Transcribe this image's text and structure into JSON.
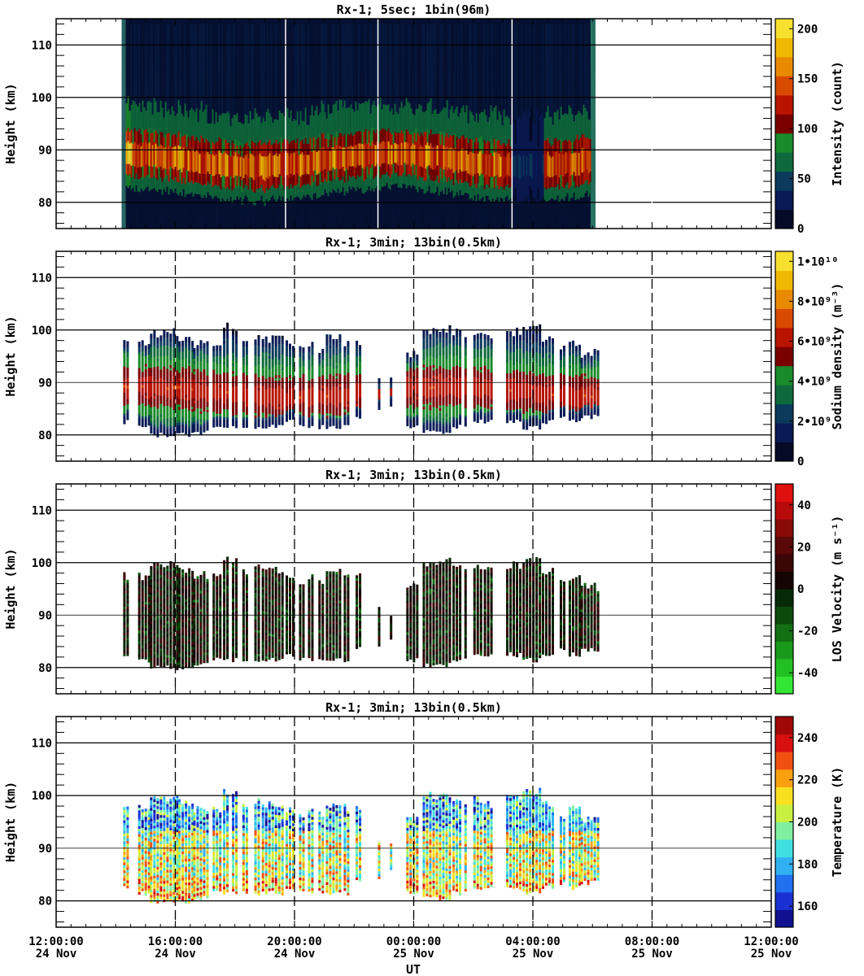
{
  "chart_data": [
    {
      "type": "heatmap",
      "title": "Rx-1;  5sec; 1bin(96m)",
      "ylabel": "Height (km)",
      "ylim": [
        75,
        115
      ],
      "yticks": [
        80,
        90,
        100,
        110
      ],
      "xlim_hours": [
        0,
        24
      ],
      "gridlines_y": [
        80,
        90,
        100,
        110
      ],
      "vertical_dashed_hours": [
        20
      ],
      "vertical_solid_hours": [
        7.7,
        10.8,
        15.3,
        18.3
      ],
      "colorbar": {
        "label": "Intensity (count)",
        "min": 0,
        "max": 210,
        "ticks": [
          "0",
          "50",
          "100",
          "150",
          "200"
        ],
        "tick_values": [
          0,
          50,
          100,
          150,
          200
        ],
        "colors": [
          "#050a26",
          "#0a1a55",
          "#0b3a5c",
          "#0e6a3c",
          "#1a8a2a",
          "#7a0000",
          "#b81400",
          "#d84a00",
          "#e88a00",
          "#f0b800",
          "#f8e030"
        ]
      },
      "layer": {
        "base": "#061235",
        "top_km": 115,
        "bottom_km": 75,
        "band_center_km": 88,
        "band_halfwidth_km": 6,
        "segments": [
          {
            "start": 2.2,
            "end": 18.1,
            "strength": 0.85
          }
        ]
      }
    },
    {
      "type": "heatmap",
      "title": "Rx-1; 3min; 13bin(0.5km)",
      "ylabel": "Height (km)",
      "ylim": [
        75,
        115
      ],
      "yticks": [
        80,
        90,
        100,
        110
      ],
      "xlim_hours": [
        0,
        24
      ],
      "gridlines_y": [
        80,
        90,
        100,
        110
      ],
      "vertical_dashed_hours": [
        4,
        8,
        12,
        16,
        20
      ],
      "colorbar": {
        "label": "Sodium density (m⁻³)",
        "min": 0,
        "max": 10500000000.0,
        "ticks": [
          "0",
          "2•10⁹",
          "4•10⁹",
          "6•10⁹",
          "8•10⁹",
          "1•10¹⁰"
        ],
        "tick_values": [
          0,
          2000000000.0,
          4000000000.0,
          6000000000.0,
          8000000000.0,
          10000000000.0
        ],
        "colors": [
          "#050a26",
          "#0a1a55",
          "#0b3a5c",
          "#0e6a3c",
          "#1a8a2a",
          "#7a0000",
          "#b81400",
          "#d84a00",
          "#e88a00",
          "#f0b800",
          "#f8e030"
        ]
      }
    },
    {
      "type": "heatmap",
      "title": "Rx-1; 3min; 13bin(0.5km)",
      "ylabel": "Height (km)",
      "ylim": [
        75,
        115
      ],
      "yticks": [
        80,
        90,
        100,
        110
      ],
      "xlim_hours": [
        0,
        24
      ],
      "gridlines_y": [
        80,
        90,
        100,
        110
      ],
      "vertical_dashed_hours": [
        4,
        8,
        12,
        16,
        20
      ],
      "colorbar": {
        "label": "LOS Velocity (m s⁻¹)",
        "min": -50,
        "max": 50,
        "ticks": [
          "-40",
          "-20",
          "0",
          "20",
          "40"
        ],
        "tick_values": [
          -40,
          -20,
          0,
          20,
          40
        ],
        "colors": [
          "#33e633",
          "#22c022",
          "#1a9a1a",
          "#137013",
          "#0b4a0b",
          "#062a06",
          "#150404",
          "#3a0606",
          "#5a0808",
          "#8a0a0a",
          "#b80c0c",
          "#e01010"
        ]
      }
    },
    {
      "type": "heatmap",
      "title": "Rx-1; 3min; 13bin(0.5km)",
      "ylabel": "Height (km)",
      "ylim": [
        75,
        115
      ],
      "yticks": [
        80,
        90,
        100,
        110
      ],
      "xlim_hours": [
        0,
        24
      ],
      "gridlines_y": [
        80,
        90,
        100,
        110
      ],
      "vertical_dashed_hours": [
        4,
        8,
        12,
        16,
        20
      ],
      "xticks": [
        {
          "time": "12:00:00",
          "date": "24 Nov"
        },
        {
          "time": "16:00:00",
          "date": "24 Nov"
        },
        {
          "time": "20:00:00",
          "date": "24 Nov"
        },
        {
          "time": "00:00:00",
          "date": "25 Nov"
        },
        {
          "time": "04:00:00",
          "date": "25 Nov"
        },
        {
          "time": "08:00:00",
          "date": "25 Nov"
        },
        {
          "time": "12:00:00",
          "date": "25 Nov"
        }
      ],
      "xlabel": "UT",
      "colorbar": {
        "label": "Temperature (K)",
        "min": 150,
        "max": 250,
        "ticks": [
          "160",
          "180",
          "200",
          "220",
          "240"
        ],
        "tick_values": [
          160,
          180,
          200,
          220,
          240
        ],
        "colors": [
          "#101090",
          "#1a30d0",
          "#2070f0",
          "#30b0f0",
          "#40e0e0",
          "#80f0a0",
          "#c8f040",
          "#f8e020",
          "#f8a010",
          "#f05010",
          "#d81010",
          "#a00808"
        ]
      }
    }
  ],
  "observation_columns_hours": [
    {
      "start": 2.25,
      "end": 2.45,
      "bottom": 82,
      "top": 98
    },
    {
      "start": 2.75,
      "end": 3.15,
      "bottom": 81,
      "top": 98
    },
    {
      "start": 3.15,
      "end": 4.1,
      "bottom": 79.5,
      "top": 100
    },
    {
      "start": 4.1,
      "end": 4.6,
      "bottom": 79.5,
      "top": 99
    },
    {
      "start": 4.6,
      "end": 5.1,
      "bottom": 80,
      "top": 98
    },
    {
      "start": 5.25,
      "end": 5.5,
      "bottom": 81,
      "top": 98
    },
    {
      "start": 5.6,
      "end": 5.8,
      "bottom": 81,
      "top": 101.5
    },
    {
      "start": 5.9,
      "end": 6.1,
      "bottom": 81,
      "top": 101
    },
    {
      "start": 6.25,
      "end": 6.4,
      "bottom": 81,
      "top": 99
    },
    {
      "start": 6.65,
      "end": 6.8,
      "bottom": 81,
      "top": 99.5
    },
    {
      "start": 6.9,
      "end": 7.6,
      "bottom": 81,
      "top": 99
    },
    {
      "start": 7.7,
      "end": 8.0,
      "bottom": 82,
      "top": 98
    },
    {
      "start": 8.15,
      "end": 8.35,
      "bottom": 81,
      "top": 97
    },
    {
      "start": 8.45,
      "end": 8.6,
      "bottom": 81,
      "top": 98
    },
    {
      "start": 8.8,
      "end": 9.0,
      "bottom": 81,
      "top": 97
    },
    {
      "start": 9.05,
      "end": 9.55,
      "bottom": 81,
      "top": 99
    },
    {
      "start": 9.65,
      "end": 9.85,
      "bottom": 81,
      "top": 98
    },
    {
      "start": 10.05,
      "end": 10.2,
      "bottom": 83,
      "top": 98
    },
    {
      "start": 10.8,
      "end": 10.88,
      "bottom": 84,
      "top": 92
    },
    {
      "start": 11.2,
      "end": 11.3,
      "bottom": 85,
      "top": 91
    },
    {
      "start": 11.75,
      "end": 12.15,
      "bottom": 81,
      "top": 96
    },
    {
      "start": 12.3,
      "end": 13.2,
      "bottom": 80,
      "top": 100.5
    },
    {
      "start": 13.3,
      "end": 13.6,
      "bottom": 81,
      "top": 100
    },
    {
      "start": 13.7,
      "end": 13.8,
      "bottom": 81,
      "top": 99
    },
    {
      "start": 14.0,
      "end": 14.3,
      "bottom": 82,
      "top": 100
    },
    {
      "start": 14.35,
      "end": 14.6,
      "bottom": 82,
      "top": 99
    },
    {
      "start": 15.1,
      "end": 15.6,
      "bottom": 82,
      "top": 100
    },
    {
      "start": 15.65,
      "end": 16.3,
      "bottom": 81,
      "top": 101
    },
    {
      "start": 16.3,
      "end": 16.7,
      "bottom": 82,
      "top": 99
    },
    {
      "start": 16.9,
      "end": 17.1,
      "bottom": 83,
      "top": 97
    },
    {
      "start": 17.2,
      "end": 17.55,
      "bottom": 82,
      "top": 98
    },
    {
      "start": 17.6,
      "end": 18.15,
      "bottom": 83,
      "top": 96
    }
  ]
}
